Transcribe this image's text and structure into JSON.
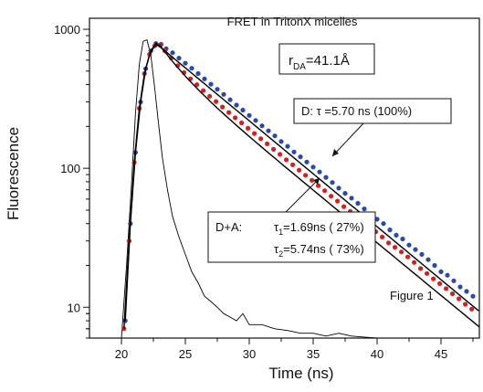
{
  "chart_data": {
    "type": "scatter",
    "title": "FRET in TritonX micelles",
    "xlabel": "Time (ns)",
    "ylabel": "Fluorescence",
    "xlim": [
      17.5,
      48
    ],
    "ylim": [
      6,
      1200
    ],
    "yscale": "log",
    "grid": false,
    "x_ticks": [
      20,
      25,
      30,
      35,
      40,
      45
    ],
    "y_ticks": [
      10,
      100,
      1000
    ],
    "figure_label": "Figure 1",
    "distance_box": {
      "prefix": "r",
      "subscript": "DA",
      "suffix": "=41.1Å"
    },
    "annotations": {
      "donor": {
        "prefix": "D:  ",
        "tau_symbol": "τ",
        "text": " =5.70 ns (100%)"
      },
      "donor_acceptor": {
        "prefix": "D+A:",
        "lines": [
          {
            "tau_symbol": "τ",
            "sub": "1",
            "text": "=1.69ns (  27%)"
          },
          {
            "tau_symbol": "τ",
            "sub": "2",
            "text": "=5.74ns (  73%)"
          }
        ]
      }
    },
    "series": [
      {
        "kind": "irf",
        "color": "#000000",
        "points": [
          [
            20.0,
            6
          ],
          [
            20.4,
            20
          ],
          [
            20.8,
            80
          ],
          [
            21.1,
            250
          ],
          [
            21.4,
            560
          ],
          [
            21.7,
            820
          ],
          [
            22.0,
            840
          ],
          [
            22.3,
            650
          ],
          [
            22.6,
            380
          ],
          [
            22.9,
            210
          ],
          [
            23.2,
            120
          ],
          [
            23.6,
            70
          ],
          [
            24.0,
            45
          ],
          [
            24.5,
            32
          ],
          [
            25.0,
            24
          ],
          [
            25.5,
            18
          ],
          [
            26.0,
            15
          ],
          [
            26.5,
            12
          ],
          [
            27.0,
            11
          ],
          [
            27.5,
            10
          ],
          [
            28.0,
            9
          ],
          [
            28.5,
            8.5
          ],
          [
            29.0,
            8
          ],
          [
            29.5,
            9
          ],
          [
            30.0,
            7.5
          ],
          [
            31.0,
            7.5
          ],
          [
            32.0,
            7
          ],
          [
            33.0,
            6.8
          ],
          [
            34.0,
            6.5
          ],
          [
            35.0,
            6.5
          ],
          [
            36.0,
            6.2
          ],
          [
            37.0,
            6.5
          ],
          [
            38.0,
            6.2
          ],
          [
            39.0,
            6.1
          ],
          [
            40.0,
            6
          ],
          [
            41.0,
            6
          ],
          [
            42.0,
            6
          ],
          [
            43.0,
            6
          ],
          [
            44.0,
            6
          ],
          [
            45.0,
            6
          ],
          [
            46.0,
            6
          ],
          [
            47.0,
            6
          ],
          [
            48.0,
            6
          ]
        ]
      },
      {
        "name": "D",
        "kind": "donor",
        "color": "#2b4aa8",
        "fit": {
          "amplitudes": [
            1.0
          ],
          "taus": [
            5.7
          ]
        },
        "points": [
          [
            20.3,
            8
          ],
          [
            20.7,
            40
          ],
          [
            21.1,
            130
          ],
          [
            21.5,
            300
          ],
          [
            21.9,
            520
          ],
          [
            22.3,
            700
          ],
          [
            22.7,
            790
          ],
          [
            23.1,
            780
          ],
          [
            23.5,
            725
          ],
          [
            24.0,
            678
          ],
          [
            24.5,
            620
          ],
          [
            25.0,
            570
          ],
          [
            25.5,
            524
          ],
          [
            26.0,
            480
          ],
          [
            26.5,
            440
          ],
          [
            27.0,
            403
          ],
          [
            27.5,
            370
          ],
          [
            28.0,
            340
          ],
          [
            28.5,
            311
          ],
          [
            29.0,
            285
          ],
          [
            29.5,
            262
          ],
          [
            30.0,
            240
          ],
          [
            30.5,
            221
          ],
          [
            31.0,
            202
          ],
          [
            31.5,
            186
          ],
          [
            32.0,
            171
          ],
          [
            32.5,
            156
          ],
          [
            33.0,
            144
          ],
          [
            33.5,
            131
          ],
          [
            34.0,
            121
          ],
          [
            34.5,
            111
          ],
          [
            35.0,
            102
          ],
          [
            35.5,
            94
          ],
          [
            36.0,
            86
          ],
          [
            36.5,
            79
          ],
          [
            37.0,
            72
          ],
          [
            37.5,
            66
          ],
          [
            38.0,
            61
          ],
          [
            38.5,
            56
          ],
          [
            39.0,
            51
          ],
          [
            39.5,
            47
          ],
          [
            40.0,
            43
          ],
          [
            40.5,
            40
          ],
          [
            41.0,
            36
          ],
          [
            41.5,
            33
          ],
          [
            42.0,
            31
          ],
          [
            42.5,
            28
          ],
          [
            43.0,
            26
          ],
          [
            43.5,
            24
          ],
          [
            44.0,
            22
          ],
          [
            44.5,
            20
          ],
          [
            45.0,
            18
          ],
          [
            45.5,
            17
          ],
          [
            46.0,
            15.5
          ],
          [
            46.5,
            14
          ],
          [
            47.0,
            13
          ],
          [
            47.5,
            12
          ]
        ]
      },
      {
        "name": "D+A",
        "kind": "donor_acceptor",
        "color": "#d42020",
        "fit": {
          "amplitudes": [
            0.27,
            0.73
          ],
          "taus": [
            1.69,
            5.74
          ]
        },
        "points": [
          [
            20.2,
            7
          ],
          [
            20.6,
            30
          ],
          [
            21.0,
            110
          ],
          [
            21.4,
            270
          ],
          [
            21.8,
            480
          ],
          [
            22.2,
            660
          ],
          [
            22.6,
            760
          ],
          [
            23.0,
            770
          ],
          [
            23.4,
            700
          ],
          [
            23.9,
            620
          ],
          [
            24.4,
            548
          ],
          [
            24.9,
            488
          ],
          [
            25.4,
            440
          ],
          [
            25.9,
            400
          ],
          [
            26.4,
            362
          ],
          [
            26.9,
            330
          ],
          [
            27.4,
            302
          ],
          [
            27.9,
            276
          ],
          [
            28.4,
            252
          ],
          [
            28.9,
            231
          ],
          [
            29.4,
            212
          ],
          [
            29.9,
            194
          ],
          [
            30.4,
            178
          ],
          [
            30.9,
            163
          ],
          [
            31.4,
            150
          ],
          [
            31.9,
            137
          ],
          [
            32.4,
            126
          ],
          [
            32.9,
            115
          ],
          [
            33.4,
            106
          ],
          [
            33.9,
            97
          ],
          [
            34.4,
            89
          ],
          [
            34.9,
            82
          ],
          [
            35.4,
            75
          ],
          [
            35.9,
            69
          ],
          [
            36.4,
            63
          ],
          [
            36.9,
            58
          ],
          [
            37.4,
            53
          ],
          [
            37.9,
            49
          ],
          [
            38.4,
            45
          ],
          [
            38.9,
            41
          ],
          [
            39.4,
            38
          ],
          [
            39.9,
            35
          ],
          [
            40.4,
            32
          ],
          [
            40.9,
            29
          ],
          [
            41.4,
            27
          ],
          [
            41.9,
            25
          ],
          [
            42.4,
            23
          ],
          [
            42.9,
            21
          ],
          [
            43.4,
            19
          ],
          [
            43.9,
            17.5
          ],
          [
            44.4,
            16
          ],
          [
            44.9,
            14.8
          ],
          [
            45.4,
            13.6
          ],
          [
            45.9,
            12.5
          ],
          [
            46.4,
            11.5
          ],
          [
            46.9,
            10.5
          ],
          [
            47.4,
            9.7
          ]
        ]
      }
    ]
  }
}
